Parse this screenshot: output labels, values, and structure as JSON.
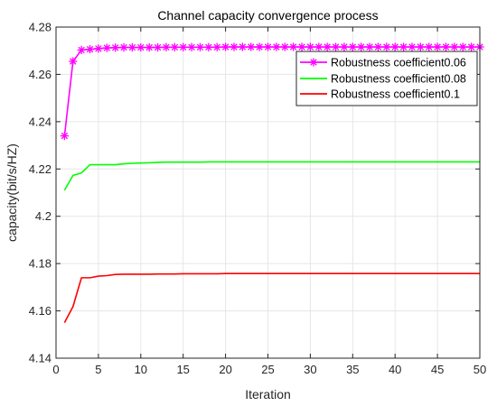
{
  "chart_data": {
    "type": "line",
    "title": "Channel capacity convergence process",
    "xlabel": "Iteration",
    "ylabel": "capacity(bit/s/HZ)",
    "xlim": [
      0,
      50
    ],
    "ylim": [
      4.14,
      4.28
    ],
    "xticks": [
      0,
      5,
      10,
      15,
      20,
      25,
      30,
      35,
      40,
      45,
      50
    ],
    "yticks": [
      4.14,
      4.16,
      4.18,
      4.2,
      4.22,
      4.24,
      4.26,
      4.28
    ],
    "ytick_labels": [
      "4.14",
      "4.16",
      "4.18",
      "4.2",
      "4.22",
      "4.24",
      "4.26",
      "4.28"
    ],
    "grid": true,
    "legend_position": "top-right",
    "x": [
      1,
      2,
      3,
      4,
      5,
      6,
      7,
      8,
      9,
      10,
      11,
      12,
      13,
      14,
      15,
      16,
      17,
      18,
      19,
      20,
      21,
      22,
      23,
      24,
      25,
      26,
      27,
      28,
      29,
      30,
      31,
      32,
      33,
      34,
      35,
      36,
      37,
      38,
      39,
      40,
      41,
      42,
      43,
      44,
      45,
      46,
      47,
      48,
      49,
      50
    ],
    "series": [
      {
        "name": "Robustness coefficient0.06",
        "color": "#ff00ff",
        "marker": "asterisk",
        "values": [
          4.234,
          4.2655,
          4.2703,
          4.2706,
          4.2709,
          4.2712,
          4.2713,
          4.2714,
          4.2714,
          4.2714,
          4.2714,
          4.2714,
          4.2715,
          4.2715,
          4.2715,
          4.2715,
          4.2715,
          4.2715,
          4.2715,
          4.2716,
          4.2716,
          4.2716,
          4.2716,
          4.2716,
          4.2716,
          4.2716,
          4.2716,
          4.2716,
          4.2716,
          4.2716,
          4.2716,
          4.2716,
          4.2716,
          4.2716,
          4.2716,
          4.2716,
          4.2716,
          4.2716,
          4.2716,
          4.2716,
          4.2716,
          4.2716,
          4.2716,
          4.2716,
          4.2716,
          4.2716,
          4.2716,
          4.2716,
          4.2716,
          4.2716
        ]
      },
      {
        "name": "Robustness coefficient0.08",
        "color": "#00ff00",
        "marker": "none",
        "values": [
          4.211,
          4.2173,
          4.2183,
          4.2218,
          4.2218,
          4.2218,
          4.2218,
          4.2222,
          4.2224,
          4.2225,
          4.2226,
          4.2228,
          4.2229,
          4.2229,
          4.2229,
          4.2229,
          4.2229,
          4.223,
          4.223,
          4.223,
          4.223,
          4.223,
          4.223,
          4.223,
          4.223,
          4.223,
          4.223,
          4.223,
          4.223,
          4.223,
          4.223,
          4.223,
          4.223,
          4.223,
          4.223,
          4.223,
          4.223,
          4.223,
          4.223,
          4.223,
          4.223,
          4.223,
          4.223,
          4.223,
          4.223,
          4.223,
          4.223,
          4.223,
          4.223,
          4.223
        ]
      },
      {
        "name": "Robustness coefficient0.1",
        "color": "#ff0000",
        "marker": "none",
        "values": [
          4.155,
          4.1618,
          4.174,
          4.174,
          4.1747,
          4.1749,
          4.1754,
          4.1755,
          4.1755,
          4.1755,
          4.1755,
          4.1756,
          4.1756,
          4.1756,
          4.1757,
          4.1757,
          4.1757,
          4.1757,
          4.1757,
          4.1758,
          4.1758,
          4.1758,
          4.1758,
          4.1758,
          4.1758,
          4.1758,
          4.1758,
          4.1758,
          4.1758,
          4.1758,
          4.1758,
          4.1758,
          4.1758,
          4.1758,
          4.1758,
          4.1758,
          4.1758,
          4.1758,
          4.1758,
          4.1758,
          4.1758,
          4.1758,
          4.1758,
          4.1758,
          4.1758,
          4.1758,
          4.1758,
          4.1758,
          4.1758,
          4.1758
        ]
      }
    ]
  }
}
